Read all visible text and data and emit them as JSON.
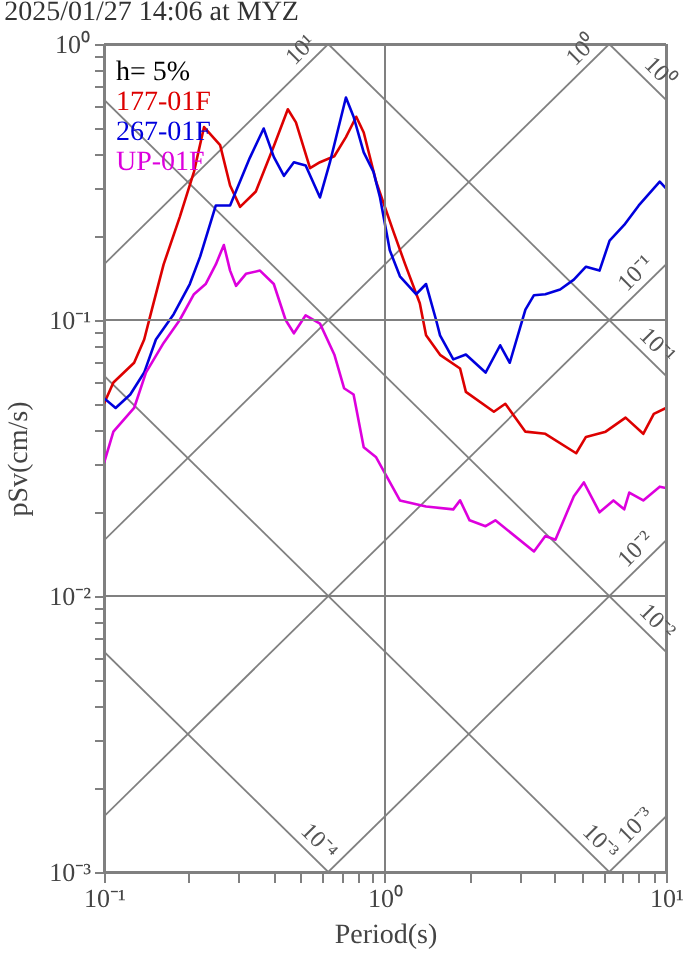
{
  "chart_data": {
    "type": "line",
    "title": "2025/01/27 14:06 at MYZ",
    "xlabel": "Period(s)",
    "ylabel": "pSv(cm/s)",
    "log": "xy",
    "grid": true,
    "legend": "top left",
    "annotations": [
      "h= 5%"
    ],
    "xlim": [
      0.1,
      10
    ],
    "ylim": [
      0.001,
      1
    ],
    "xticks": [
      {
        "value": 0.1,
        "label": "10⁻¹"
      },
      {
        "value": 0.2,
        "label": null
      },
      {
        "value": 0.3,
        "label": null
      },
      {
        "value": 0.4,
        "label": null
      },
      {
        "value": 0.5,
        "label": null
      },
      {
        "value": 0.6,
        "label": null
      },
      {
        "value": 0.7,
        "label": null
      },
      {
        "value": 0.8,
        "label": null
      },
      {
        "value": 0.9,
        "label": null
      },
      {
        "value": 1,
        "label": "10⁰"
      },
      {
        "value": 2,
        "label": null
      },
      {
        "value": 3,
        "label": null
      },
      {
        "value": 4,
        "label": null
      },
      {
        "value": 5,
        "label": null
      },
      {
        "value": 6,
        "label": null
      },
      {
        "value": 7,
        "label": null
      },
      {
        "value": 8,
        "label": null
      },
      {
        "value": 9,
        "label": null
      },
      {
        "value": 10,
        "label": "10¹"
      }
    ],
    "yticks": [
      {
        "value": 0.001,
        "label": "10⁻³"
      },
      {
        "value": 0.002,
        "label": null
      },
      {
        "value": 0.003,
        "label": null
      },
      {
        "value": 0.004,
        "label": null
      },
      {
        "value": 0.005,
        "label": null
      },
      {
        "value": 0.006,
        "label": null
      },
      {
        "value": 0.007,
        "label": null
      },
      {
        "value": 0.008,
        "label": null
      },
      {
        "value": 0.009,
        "label": null
      },
      {
        "value": 0.01,
        "label": "10⁻²"
      },
      {
        "value": 0.02,
        "label": null
      },
      {
        "value": 0.03,
        "label": null
      },
      {
        "value": 0.04,
        "label": null
      },
      {
        "value": 0.05,
        "label": null
      },
      {
        "value": 0.06,
        "label": null
      },
      {
        "value": 0.07,
        "label": null
      },
      {
        "value": 0.08,
        "label": null
      },
      {
        "value": 0.09,
        "label": null
      },
      {
        "value": 0.1,
        "label": "10⁻¹"
      },
      {
        "value": 0.2,
        "label": null
      },
      {
        "value": 0.3,
        "label": null
      },
      {
        "value": 0.4,
        "label": null
      },
      {
        "value": 0.5,
        "label": null
      },
      {
        "value": 0.6,
        "label": null
      },
      {
        "value": 0.7,
        "label": null
      },
      {
        "value": 0.8,
        "label": null
      },
      {
        "value": 0.9,
        "label": null
      },
      {
        "value": 1,
        "label": "10⁰"
      }
    ],
    "series": [
      {
        "name": "10¹",
        "color": "#808080",
        "x": [
          0.1,
          0.628
        ],
        "values": [
          0.159,
          1
        ]
      },
      {
        "name": "10⁰",
        "color": "#808080",
        "x": [
          0.1,
          6.28
        ],
        "values": [
          0.0159,
          1
        ]
      },
      {
        "name": "10⁻¹",
        "color": "#808080",
        "x": [
          0.1,
          10
        ],
        "values": [
          0.00159,
          0.159
        ]
      },
      {
        "name": "10⁻²",
        "color": "#808080",
        "x": [
          0.628,
          10
        ],
        "values": [
          0.001,
          0.0159
        ]
      },
      {
        "name": "10⁻³",
        "color": "#808080",
        "x": [
          6.28,
          10
        ],
        "values": [
          0.001,
          0.00159
        ]
      },
      {
        "name": "10⁰",
        "color": "#808080",
        "x": [
          6.28,
          10
        ],
        "values": [
          1,
          0.628
        ]
      },
      {
        "name": "10⁻¹",
        "color": "#808080",
        "x": [
          0.628,
          10
        ],
        "values": [
          1,
          0.0628
        ]
      },
      {
        "name": "10⁻²",
        "color": "#808080",
        "x": [
          0.1,
          10
        ],
        "values": [
          0.628,
          0.00628
        ]
      },
      {
        "name": "10⁻³",
        "color": "#808080",
        "x": [
          0.1,
          6.28
        ],
        "values": [
          0.0628,
          0.001
        ]
      },
      {
        "name": "10⁻⁴",
        "color": "#808080",
        "x": [
          0.1,
          0.628
        ],
        "values": [
          0.00628,
          0.001
        ]
      },
      {
        "type": "line",
        "name": "177-01F",
        "color": "#dd0000",
        "x": [
          0.1,
          0.108,
          0.128,
          0.139,
          0.148,
          0.163,
          0.186,
          0.209,
          0.227,
          0.259,
          0.281,
          0.305,
          0.347,
          0.402,
          0.451,
          0.482,
          0.541,
          0.587,
          0.66,
          0.726,
          0.79,
          0.84,
          0.93,
          1.07,
          1.18,
          1.33,
          1.4,
          1.57,
          1.85,
          1.94,
          2.44,
          2.68,
          3.16,
          3.72,
          4.79,
          5.19,
          6.1,
          7.18,
          8.3,
          9.05,
          10
        ],
        "values": [
          0.0497,
          0.0594,
          0.07,
          0.085,
          0.109,
          0.159,
          0.236,
          0.344,
          0.5,
          0.43,
          0.307,
          0.257,
          0.292,
          0.426,
          0.58,
          0.52,
          0.355,
          0.373,
          0.392,
          0.46,
          0.545,
          0.478,
          0.317,
          0.21,
          0.159,
          0.115,
          0.088,
          0.0748,
          0.0667,
          0.0549,
          0.0465,
          0.0497,
          0.0394,
          0.0387,
          0.0329,
          0.0377,
          0.0394,
          0.0443,
          0.0387,
          0.0457,
          0.048
        ]
      },
      {
        "type": "line",
        "name": "267-01F",
        "color": "#0000dd",
        "x": [
          0.1,
          0.11,
          0.124,
          0.139,
          0.153,
          0.177,
          0.202,
          0.22,
          0.25,
          0.281,
          0.33,
          0.37,
          0.402,
          0.437,
          0.474,
          0.522,
          0.587,
          0.637,
          0.726,
          0.773,
          0.84,
          0.91,
          0.96,
          1.04,
          1.13,
          1.29,
          1.4,
          1.52,
          1.57,
          1.75,
          1.94,
          2.28,
          2.57,
          2.78,
          3.16,
          3.39,
          3.72,
          4.2,
          4.7,
          5.19,
          5.8,
          6.3,
          7.1,
          8,
          9.5,
          10
        ],
        "values": [
          0.0521,
          0.048,
          0.0537,
          0.0645,
          0.085,
          0.105,
          0.135,
          0.17,
          0.26,
          0.26,
          0.386,
          0.494,
          0.39,
          0.333,
          0.373,
          0.363,
          0.278,
          0.373,
          0.64,
          0.545,
          0.405,
          0.344,
          0.278,
          0.179,
          0.144,
          0.124,
          0.135,
          0.1,
          0.088,
          0.072,
          0.075,
          0.0645,
          0.081,
          0.07,
          0.109,
          0.123,
          0.124,
          0.129,
          0.14,
          0.156,
          0.151,
          0.194,
          0.221,
          0.26,
          0.317,
          0.3
        ]
      },
      {
        "type": "line",
        "name": "UP-01F",
        "color": "#dd00dd",
        "x": [
          0.1,
          0.108,
          0.128,
          0.141,
          0.163,
          0.186,
          0.209,
          0.23,
          0.25,
          0.267,
          0.281,
          0.295,
          0.32,
          0.359,
          0.402,
          0.443,
          0.474,
          0.522,
          0.587,
          0.66,
          0.715,
          0.773,
          0.84,
          0.93,
          1.13,
          1.4,
          1.75,
          1.85,
          2.0,
          2.28,
          2.47,
          3.39,
          3.72,
          4.04,
          4.7,
          5.1,
          5.8,
          6.5,
          7.1,
          7.4,
          8.3,
          9.5,
          10
        ],
        "values": [
          0.0303,
          0.0394,
          0.048,
          0.0645,
          0.0826,
          0.1,
          0.124,
          0.135,
          0.159,
          0.187,
          0.151,
          0.133,
          0.147,
          0.151,
          0.135,
          0.1,
          0.0895,
          0.104,
          0.097,
          0.075,
          0.0566,
          0.0537,
          0.0346,
          0.0318,
          0.0222,
          0.0211,
          0.0206,
          0.0222,
          0.0188,
          0.0179,
          0.0188,
          0.0145,
          0.0165,
          0.016,
          0.023,
          0.0258,
          0.0201,
          0.0222,
          0.0206,
          0.0237,
          0.0222,
          0.0249,
          0.0246
        ]
      }
    ]
  }
}
